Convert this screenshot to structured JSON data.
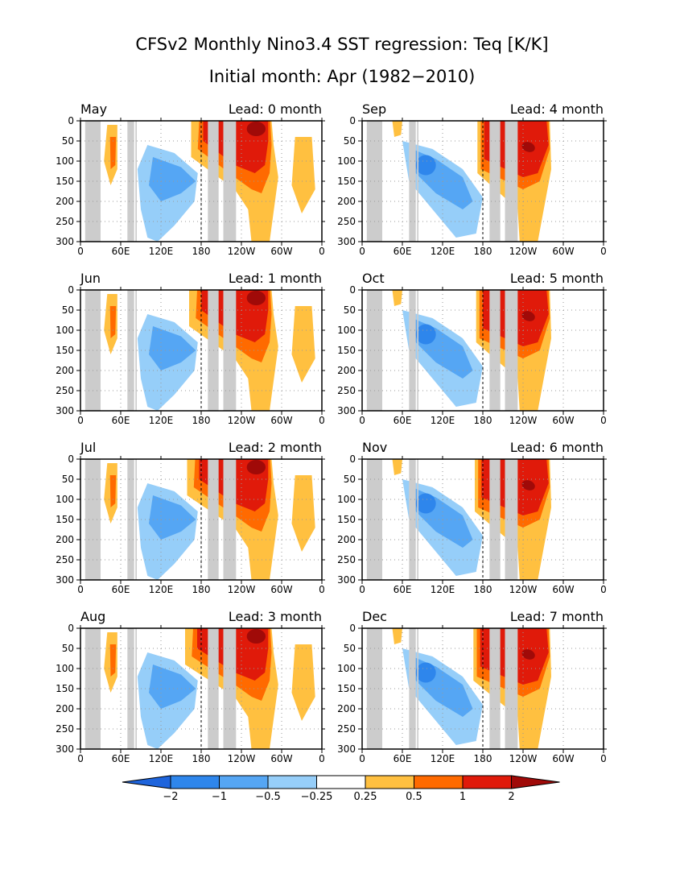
{
  "page": {
    "title": "CFSv2 Monthly Nino3.4 SST regression: Teq [K/K]",
    "subtitle": "Initial month: Apr (1982−2010)"
  },
  "chart_data": {
    "type": "heatmap",
    "x_ticks": [
      "0",
      "60E",
      "120E",
      "180",
      "120W",
      "60W",
      "0"
    ],
    "x_range": [
      0,
      360
    ],
    "y_ticks": [
      "0",
      "50",
      "100",
      "150",
      "200",
      "250",
      "300"
    ],
    "y_range": [
      300,
      0
    ],
    "grid": true,
    "reference_line_x": 180,
    "land_bands": [
      [
        7,
        30
      ],
      [
        70,
        80
      ],
      [
        82,
        84
      ],
      [
        190,
        206
      ],
      [
        213,
        232
      ]
    ],
    "panels": [
      {
        "month": "May",
        "lead": "Lead: 0 month"
      },
      {
        "month": "Sep",
        "lead": "Lead: 4 month"
      },
      {
        "month": "Jun",
        "lead": "Lead: 1 month"
      },
      {
        "month": "Oct",
        "lead": "Lead: 5 month"
      },
      {
        "month": "Jul",
        "lead": "Lead: 2 month"
      },
      {
        "month": "Nov",
        "lead": "Lead: 6 month"
      },
      {
        "month": "Aug",
        "lead": "Lead: 3 month"
      },
      {
        "month": "Dec",
        "lead": "Lead: 7 month"
      }
    ],
    "colorbar": {
      "labels": [
        "−2",
        "−1",
        "−0.5",
        "−0.25",
        "0.25",
        "0.5",
        "1",
        "2"
      ],
      "colors": [
        "#1e64dc",
        "#2e86ec",
        "#55a6f4",
        "#96cef9",
        "#ffffff",
        "#ffc040",
        "#ff6a00",
        "#e01a0a",
        "#a00a08"
      ]
    }
  }
}
